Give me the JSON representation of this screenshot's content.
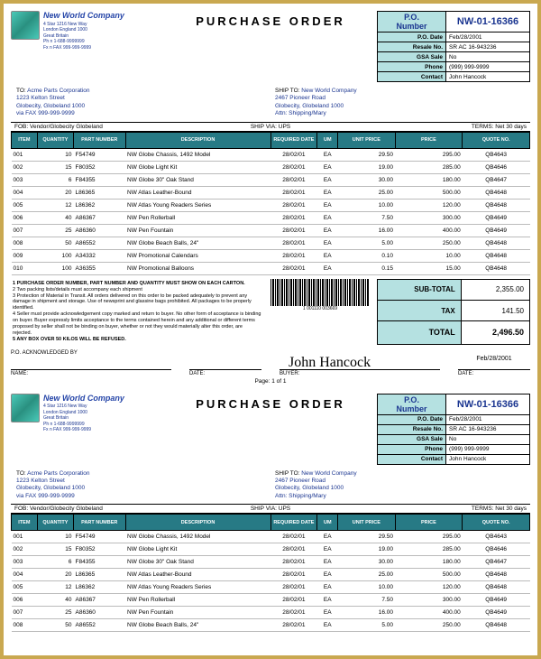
{
  "company": {
    "name": "New World Company",
    "addr": "4 Star 1216 New Way\nLondon England 1000\nGreat Britain\nPh n 1-688-9999999\nFx n FAX 999-999-9999"
  },
  "po": {
    "title": "PURCHASE ORDER",
    "number": "NW-01-16366",
    "date": "Feb/28/2001",
    "resale": "SR AC 16-943236",
    "gsa": "No",
    "phone": "(999) 999-9999",
    "contact": "John Hancock"
  },
  "to": {
    "label": "TO:",
    "body": "Acme Parts Corporation\n1223 Kelton Street\nGlobecity, Globeland 1000\nvia FAX 999-999-9999"
  },
  "ship": {
    "label": "SHIP TO:",
    "body": "New World Company\n2467 Pioneer Road\nGlobecity, Globeland  1000\nAttn: Shipping/Mary"
  },
  "fob": "FOB:   Vendor/Globecity Globeland",
  "shipvia": "SHIP VIA: UPS",
  "terms": "TERMS: Net 30 days",
  "cols": [
    "ITEM",
    "QUANTITY",
    "PART NUMBER",
    "DESCRIPTION",
    "REQUIRED DATE",
    "UM",
    "UNIT PRICE",
    "PRICE",
    "QUOTE NO."
  ],
  "items": [
    {
      "i": "001",
      "q": "10",
      "pn": "F54749",
      "d": "NW Globe Chassis,  1492 Model",
      "rd": "28/02/01",
      "um": "EA",
      "up": "29.50",
      "p": "295.00",
      "qn": "QB4643"
    },
    {
      "i": "002",
      "q": "15",
      "pn": "F80352",
      "d": "NW Globe Light Kit",
      "rd": "28/02/01",
      "um": "EA",
      "up": "19.00",
      "p": "285.00",
      "qn": "QB4646"
    },
    {
      "i": "003",
      "q": "6",
      "pn": "F84355",
      "d": "NW Globe 30\" Oak Stand",
      "rd": "28/02/01",
      "um": "EA",
      "up": "30.00",
      "p": "180.00",
      "qn": "QB4647"
    },
    {
      "i": "004",
      "q": "20",
      "pn": "L86365",
      "d": "NW Atlas Leather-Bound",
      "rd": "28/02/01",
      "um": "EA",
      "up": "25.00",
      "p": "500.00",
      "qn": "QB4648"
    },
    {
      "i": "005",
      "q": "12",
      "pn": "L86362",
      "d": "NW Atlas Young Readers Series",
      "rd": "28/02/01",
      "um": "EA",
      "up": "10.00",
      "p": "120.00",
      "qn": "QB4648"
    },
    {
      "i": "006",
      "q": "40",
      "pn": "A86367",
      "d": "NW Pen Rollerball",
      "rd": "28/02/01",
      "um": "EA",
      "up": "7.50",
      "p": "300.00",
      "qn": "QB4649"
    },
    {
      "i": "007",
      "q": "25",
      "pn": "A86360",
      "d": "NW Pen Fountain",
      "rd": "28/02/01",
      "um": "EA",
      "up": "16.00",
      "p": "400.00",
      "qn": "QB4649"
    },
    {
      "i": "008",
      "q": "50",
      "pn": "A86552",
      "d": "NW Globe Beach Balls, 24\"",
      "rd": "28/02/01",
      "um": "EA",
      "up": "5.00",
      "p": "250.00",
      "qn": "QB4648"
    },
    {
      "i": "009",
      "q": "100",
      "pn": "A34332",
      "d": "NW Promotional Calendars",
      "rd": "28/02/01",
      "um": "EA",
      "up": "0.10",
      "p": "10.00",
      "qn": "QB4648"
    },
    {
      "i": "010",
      "q": "100",
      "pn": "A36355",
      "d": "NW Promotional Balloons",
      "rd": "28/02/01",
      "um": "EA",
      "up": "0.15",
      "p": "15.00",
      "qn": "QB4648"
    }
  ],
  "items2": [
    {
      "i": "001",
      "q": "10",
      "pn": "F54749",
      "d": "NW Globe Chassis,  1492 Model",
      "rd": "28/02/01",
      "um": "EA",
      "up": "29.50",
      "p": "295.00",
      "qn": "QB4643"
    },
    {
      "i": "002",
      "q": "15",
      "pn": "F80352",
      "d": "NW Globe Light Kit",
      "rd": "28/02/01",
      "um": "EA",
      "up": "19.00",
      "p": "285.00",
      "qn": "QB4646"
    },
    {
      "i": "003",
      "q": "6",
      "pn": "F84355",
      "d": "NW Globe 30\" Oak Stand",
      "rd": "28/02/01",
      "um": "EA",
      "up": "30.00",
      "p": "180.00",
      "qn": "QB4647"
    },
    {
      "i": "004",
      "q": "20",
      "pn": "L86365",
      "d": "NW Atlas Leather-Bound",
      "rd": "28/02/01",
      "um": "EA",
      "up": "25.00",
      "p": "500.00",
      "qn": "QB4648"
    },
    {
      "i": "005",
      "q": "12",
      "pn": "L86362",
      "d": "NW Atlas Young Readers Series",
      "rd": "28/02/01",
      "um": "EA",
      "up": "10.00",
      "p": "120.00",
      "qn": "QB4648"
    },
    {
      "i": "006",
      "q": "40",
      "pn": "A86367",
      "d": "NW Pen Rollerball",
      "rd": "28/02/01",
      "um": "EA",
      "up": "7.50",
      "p": "300.00",
      "qn": "QB4649"
    },
    {
      "i": "007",
      "q": "25",
      "pn": "A86360",
      "d": "NW Pen Fountain",
      "rd": "28/02/01",
      "um": "EA",
      "up": "16.00",
      "p": "400.00",
      "qn": "QB4649"
    },
    {
      "i": "008",
      "q": "50",
      "pn": "A86552",
      "d": "NW Globe Beach Balls, 24\"",
      "rd": "28/02/01",
      "um": "EA",
      "up": "5.00",
      "p": "250.00",
      "qn": "QB4648"
    }
  ],
  "termsText": {
    "t1": "1  PURCHASE ORDER NUMBER, PART NUMBER AND QUANTITY MUST SHOW ON EACH CARTON.",
    "t2": "2  Two packing lists/details must accompany each shipment",
    "t3": "3  Protection of Material in Transit.  All orders delivered on this order to be packed adequately to prevent any damage in shipment and storage.  Use of newsprint and glassine bags prohibited.  All packages to be properly identified.",
    "t4": "4  Seller must provide acknowledgement copy marked and return to buyer.  No other form of acceptance is binding on buyer.  Buyer expressly limits acceptance to the terms contained herein and any additional or different terms proposed by seller shall not be binding on buyer, whether or not they would materially alter this order, are rejected.",
    "t5": "5  ANY BOX OVER 50 KILOS WILL BE REFUSED."
  },
  "totals": {
    "sub": "2,355.00",
    "tax": "141.50",
    "tot": "2,496.50",
    "sub_lbl": "SUB-TOTAL",
    "tax_lbl": "TAX",
    "tot_lbl": "TOTAL"
  },
  "sig": {
    "ack": "P.O. ACKNOWLEDGED BY",
    "name": "NAME:",
    "date": "DATE:",
    "buyer": "BUYER:",
    "sig": "John Hancock",
    "bdate": "Feb/28/2001"
  },
  "barcode_num": "1 001110 003669",
  "page": "Page: 1 of 1"
}
